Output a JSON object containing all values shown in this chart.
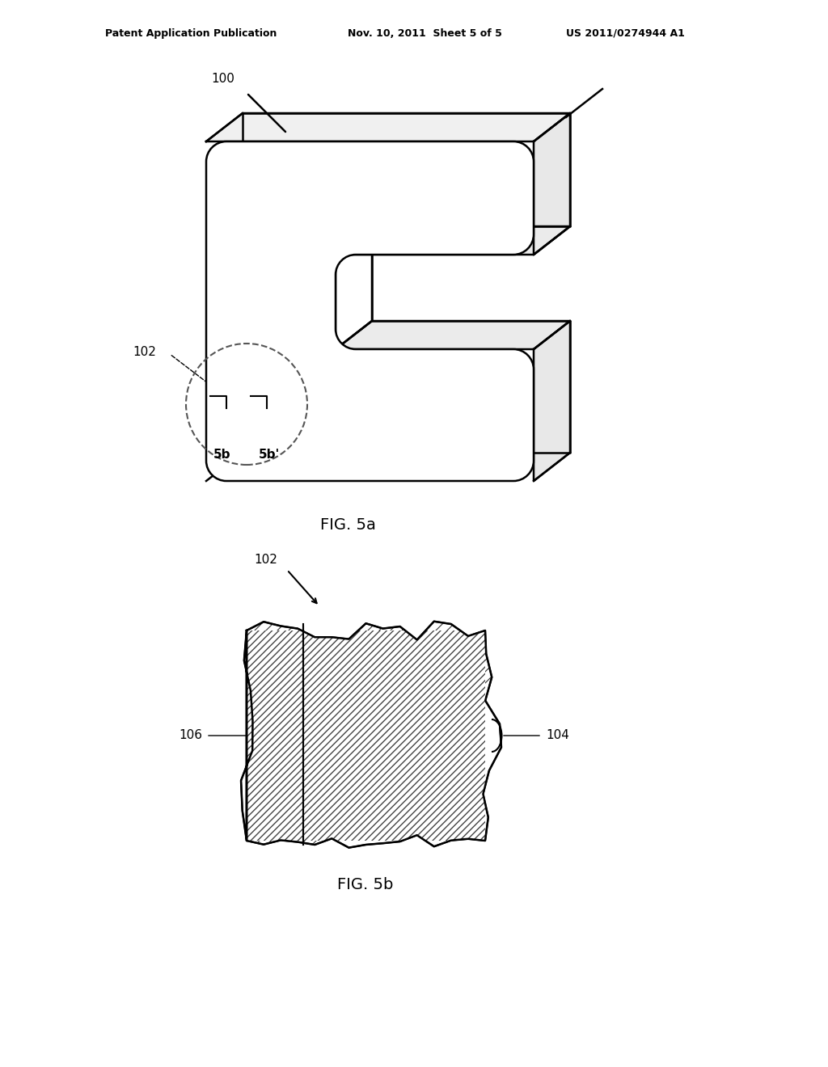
{
  "bg_color": "#ffffff",
  "line_color": "#000000",
  "header_left": "Patent Application Publication",
  "header_mid": "Nov. 10, 2011  Sheet 5 of 5",
  "header_right": "US 2011/0274944 A1",
  "fig5a_label": "FIG. 5a",
  "fig5b_label": "FIG. 5b",
  "label_100": "100",
  "label_102_top": "102",
  "label_102_bot": "102",
  "label_5b_left": "5b",
  "label_5b_right": "5b'",
  "label_104": "104",
  "label_106": "106"
}
